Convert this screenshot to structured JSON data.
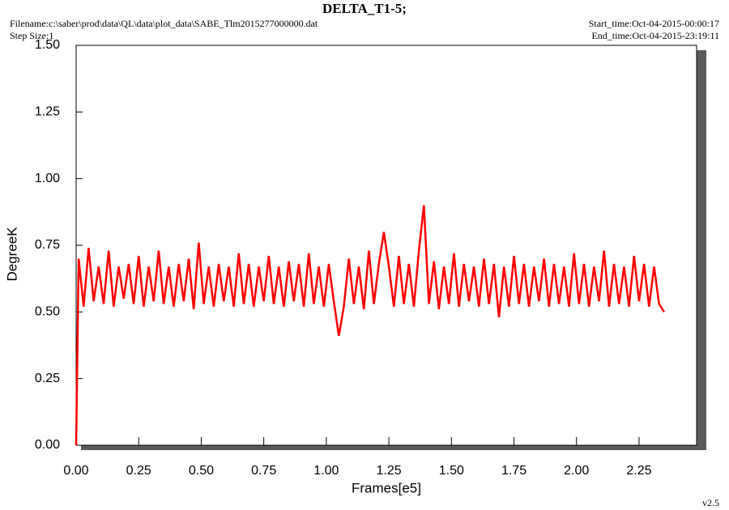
{
  "chart_data": {
    "type": "line",
    "title": "DELTA_T1-5;",
    "filename": "Filename:c:\\saber\\prod\\data\\QL\\data\\plot_data\\SABE_Tlm2015277000000.dat",
    "step_size": "Step Size:1",
    "start_time": "Start_time:Oct-04-2015-00:00:17",
    "end_time": "End_time:Oct-04-2015-23:19:11",
    "version": "v2.5",
    "x_label": "Frames[e5]",
    "y_label": "DegreeK",
    "color": "#ff0000",
    "xlim": [
      0,
      2.48
    ],
    "ylim": [
      0,
      1.5
    ],
    "xticks": [
      {
        "value": 0,
        "label": "0.00"
      },
      {
        "value": 0.25,
        "label": "0.25"
      },
      {
        "value": 0.5,
        "label": "0.50"
      },
      {
        "value": 0.75,
        "label": "0.75"
      },
      {
        "value": 1,
        "label": "1.00"
      },
      {
        "value": 1.25,
        "label": "1.25"
      },
      {
        "value": 1.5,
        "label": "1.50"
      },
      {
        "value": 1.75,
        "label": "1.75"
      },
      {
        "value": 2,
        "label": "2.00"
      },
      {
        "value": 2.25,
        "label": "2.25"
      }
    ],
    "yticks": [
      {
        "value": 0,
        "label": "0.00"
      },
      {
        "value": 0.25,
        "label": "0.25"
      },
      {
        "value": 0.5,
        "label": "0.50"
      },
      {
        "value": 0.75,
        "label": "0.75"
      },
      {
        "value": 1,
        "label": "1.00"
      },
      {
        "value": 1.25,
        "label": "1.25"
      },
      {
        "value": 1.5,
        "label": "1.50"
      }
    ],
    "x": [
      0,
      0.01,
      0.03,
      0.05,
      0.07,
      0.09,
      0.11,
      0.13,
      0.15,
      0.17,
      0.19,
      0.21,
      0.23,
      0.25,
      0.27,
      0.29,
      0.31,
      0.33,
      0.35,
      0.37,
      0.39,
      0.41,
      0.43,
      0.45,
      0.47,
      0.49,
      0.51,
      0.53,
      0.55,
      0.57,
      0.59,
      0.61,
      0.63,
      0.65,
      0.67,
      0.69,
      0.71,
      0.73,
      0.75,
      0.77,
      0.79,
      0.81,
      0.83,
      0.85,
      0.87,
      0.89,
      0.91,
      0.93,
      0.95,
      0.97,
      0.99,
      1.01,
      1.03,
      1.05,
      1.07,
      1.09,
      1.11,
      1.13,
      1.15,
      1.17,
      1.19,
      1.21,
      1.23,
      1.25,
      1.27,
      1.29,
      1.31,
      1.33,
      1.35,
      1.37,
      1.39,
      1.41,
      1.43,
      1.45,
      1.47,
      1.49,
      1.51,
      1.53,
      1.55,
      1.57,
      1.59,
      1.61,
      1.63,
      1.65,
      1.67,
      1.69,
      1.71,
      1.73,
      1.75,
      1.77,
      1.79,
      1.81,
      1.83,
      1.85,
      1.87,
      1.89,
      1.91,
      1.93,
      1.95,
      1.97,
      1.99,
      2.01,
      2.03,
      2.05,
      2.07,
      2.09,
      2.11,
      2.13,
      2.15,
      2.17,
      2.19,
      2.21,
      2.23,
      2.25,
      2.27,
      2.29,
      2.31,
      2.33,
      2.35
    ],
    "values": [
      0.0,
      0.7,
      0.52,
      0.74,
      0.54,
      0.67,
      0.53,
      0.73,
      0.52,
      0.67,
      0.55,
      0.68,
      0.53,
      0.71,
      0.52,
      0.67,
      0.54,
      0.73,
      0.53,
      0.67,
      0.52,
      0.68,
      0.54,
      0.7,
      0.51,
      0.76,
      0.53,
      0.67,
      0.52,
      0.68,
      0.54,
      0.67,
      0.52,
      0.72,
      0.53,
      0.68,
      0.52,
      0.67,
      0.54,
      0.71,
      0.53,
      0.67,
      0.52,
      0.69,
      0.54,
      0.68,
      0.52,
      0.72,
      0.53,
      0.67,
      0.52,
      0.68,
      0.54,
      0.41,
      0.52,
      0.7,
      0.53,
      0.67,
      0.51,
      0.73,
      0.53,
      0.68,
      0.8,
      0.67,
      0.52,
      0.71,
      0.53,
      0.68,
      0.52,
      0.73,
      0.9,
      0.53,
      0.69,
      0.51,
      0.67,
      0.53,
      0.72,
      0.52,
      0.68,
      0.54,
      0.67,
      0.52,
      0.7,
      0.53,
      0.68,
      0.48,
      0.67,
      0.52,
      0.71,
      0.53,
      0.68,
      0.52,
      0.67,
      0.54,
      0.7,
      0.52,
      0.68,
      0.53,
      0.67,
      0.52,
      0.72,
      0.53,
      0.68,
      0.52,
      0.67,
      0.54,
      0.73,
      0.52,
      0.68,
      0.53,
      0.67,
      0.52,
      0.71,
      0.54,
      0.68,
      0.52,
      0.67,
      0.53,
      0.5
    ]
  }
}
